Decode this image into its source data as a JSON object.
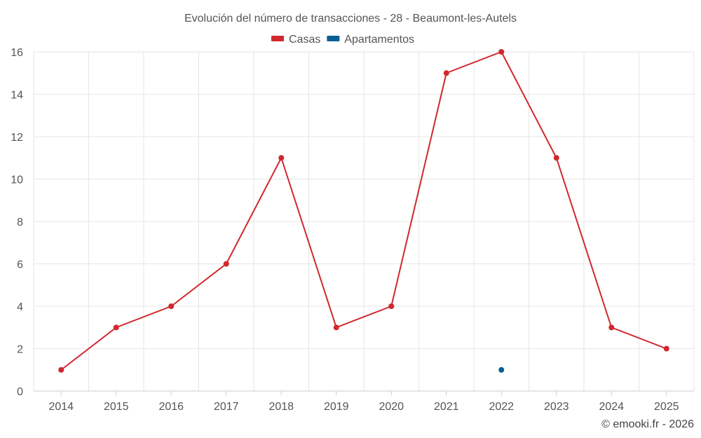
{
  "chart_data": {
    "type": "line",
    "title": "Evolución del número de transacciones - 28 - Beaumont-les-Autels",
    "x": [
      "2014",
      "2015",
      "2016",
      "2017",
      "2018",
      "2019",
      "2020",
      "2021",
      "2022",
      "2023",
      "2024",
      "2025"
    ],
    "series": [
      {
        "name": "Casas",
        "color": "#d0282e",
        "values": [
          1,
          3,
          4,
          6,
          11,
          3,
          4,
          15,
          16,
          11,
          3,
          2
        ]
      },
      {
        "name": "Apartamentos",
        "color": "#0b5e96",
        "values": [
          null,
          null,
          null,
          null,
          null,
          null,
          null,
          null,
          1,
          null,
          null,
          null
        ]
      }
    ],
    "yticks": [
      0,
      2,
      4,
      6,
      8,
      10,
      12,
      14,
      16
    ],
    "ylim": [
      0,
      16
    ],
    "grid": true,
    "legend_position": "top-center"
  },
  "credit": "© emooki.fr - 2026"
}
